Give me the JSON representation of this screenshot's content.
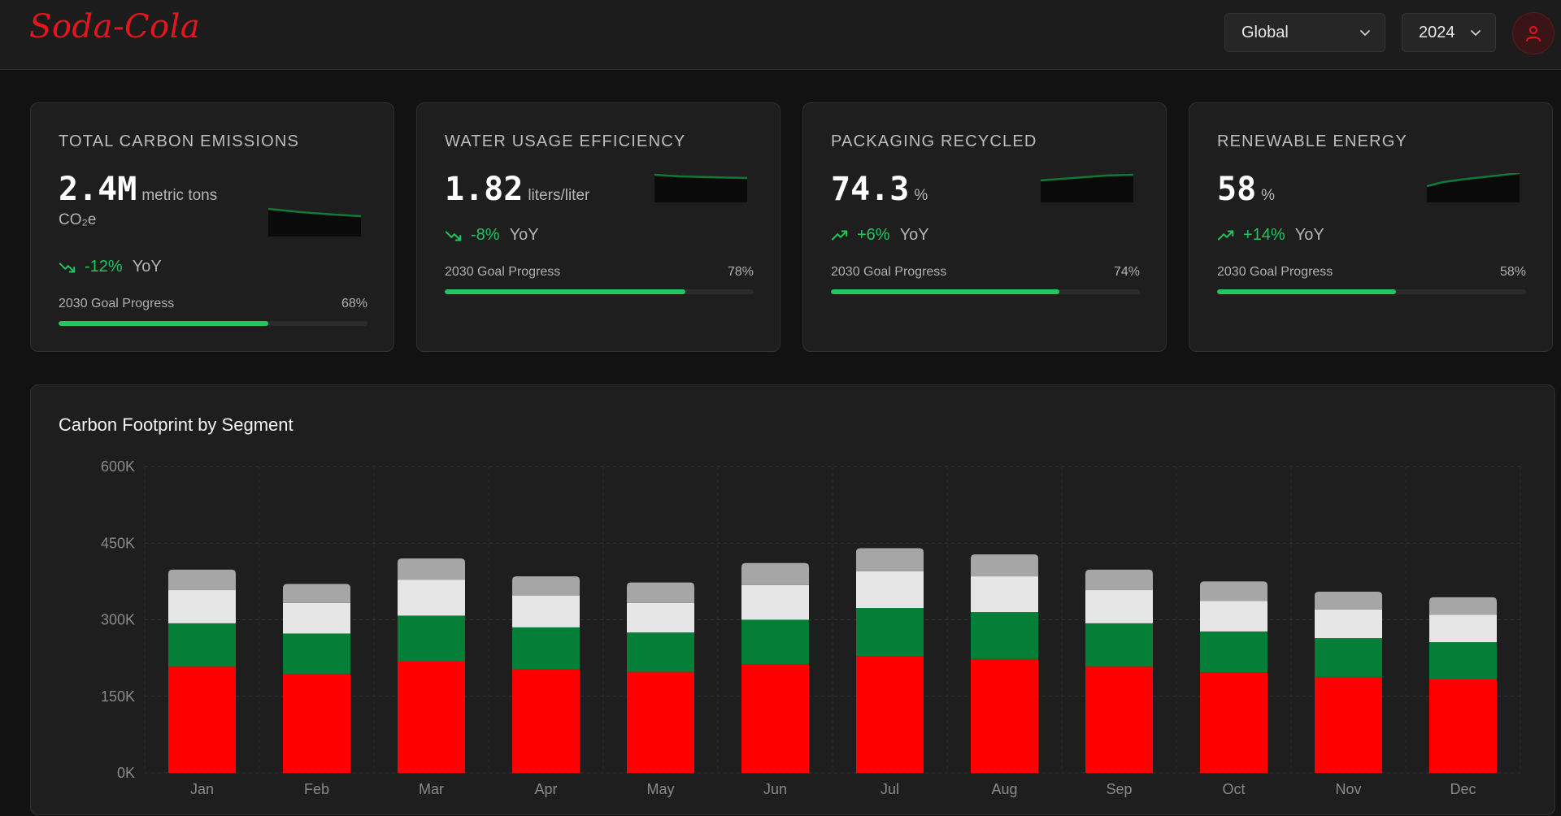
{
  "header": {
    "logo": "Soda-Cola",
    "region_select": {
      "value": "Global",
      "icon": "chevron-down-icon"
    },
    "year_select": {
      "value": "2024",
      "icon": "chevron-down-icon"
    },
    "user_icon": "user-icon"
  },
  "colors": {
    "brand_red": "#e4161c",
    "positive_green": "#22c55e",
    "segment_red": "#ff0000",
    "segment_green": "#057f38",
    "segment_light": "#e6e6e6",
    "segment_gray": "#a6a6a6"
  },
  "kpis": [
    {
      "title": "TOTAL CARBON EMISSIONS",
      "value": "2.4M",
      "unit": "metric tons CO₂e",
      "trend": "-12%",
      "trend_direction": "down",
      "trend_suffix": "YoY",
      "goal_label": "2030 Goal Progress",
      "goal_progress": 68,
      "goal_text": "68%"
    },
    {
      "title": "WATER USAGE EFFICIENCY",
      "value": "1.82",
      "unit": "liters/liter",
      "trend": "-8%",
      "trend_direction": "down",
      "trend_suffix": "YoY",
      "goal_label": "2030 Goal Progress",
      "goal_progress": 78,
      "goal_text": "78%"
    },
    {
      "title": "PACKAGING RECYCLED",
      "value": "74.3",
      "unit": "%",
      "trend": "+6%",
      "trend_direction": "up",
      "trend_suffix": "YoY",
      "goal_label": "2030 Goal Progress",
      "goal_progress": 74,
      "goal_text": "74%"
    },
    {
      "title": "RENEWABLE ENERGY",
      "value": "58",
      "unit": "%",
      "trend": "+14%",
      "trend_direction": "up",
      "trend_suffix": "YoY",
      "goal_label": "2030 Goal Progress",
      "goal_progress": 58,
      "goal_text": "58%"
    }
  ],
  "chart_data": {
    "type": "bar",
    "stacked": true,
    "title": "Carbon Footprint by Segment",
    "categories": [
      "Jan",
      "Feb",
      "Mar",
      "Apr",
      "May",
      "Jun",
      "Jul",
      "Aug",
      "Sep",
      "Oct",
      "Nov",
      "Dec"
    ],
    "ylim": [
      0,
      600000
    ],
    "yticks": [
      0,
      150000,
      300000,
      450000,
      600000
    ],
    "ytick_labels": [
      "0K",
      "150K",
      "300K",
      "450K",
      "600K"
    ],
    "grid": true,
    "legend": "none",
    "series": [
      {
        "color": "#ff0000",
        "values": [
          208000,
          193000,
          218000,
          203000,
          198000,
          213000,
          228000,
          223000,
          208000,
          197000,
          188000,
          183000
        ]
      },
      {
        "color": "#057f38",
        "values": [
          85000,
          80000,
          90000,
          82000,
          77000,
          87000,
          95000,
          92000,
          85000,
          80000,
          76000,
          73000
        ]
      },
      {
        "color": "#e6e6e6",
        "values": [
          65000,
          60000,
          70000,
          62000,
          58000,
          68000,
          72000,
          70000,
          65000,
          60000,
          56000,
          54000
        ]
      },
      {
        "color": "#a6a6a6",
        "values": [
          40000,
          37000,
          42000,
          38000,
          40000,
          43000,
          45000,
          43000,
          40000,
          38000,
          35000,
          34000
        ]
      }
    ]
  }
}
